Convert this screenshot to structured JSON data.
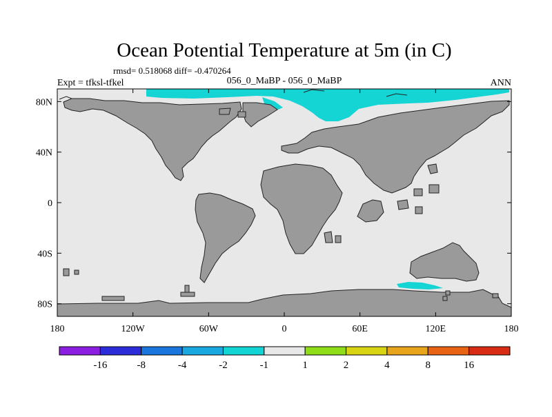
{
  "title": "Ocean Potential Temperature at 5m (in C)",
  "stats": "rmsd= 0.518068 diff= -0.470264",
  "left_label": "Expt = tfksl-tfkel",
  "center_label": "056_0_MaBP - 056_0_MaBP",
  "right_label": "ANN",
  "map": {
    "projection": "cylindrical equidistant",
    "lon_range": [
      -180,
      180
    ],
    "lat_range": [
      -90,
      90
    ],
    "lon_ticks": [
      "180",
      "120W",
      "60W",
      "0",
      "60E",
      "120E",
      "180"
    ],
    "lat_ticks": [
      "80N",
      "40N",
      "0",
      "40S",
      "80S"
    ],
    "land_color": "#9a9a9a",
    "ocean_color": "#e8e8e8",
    "anomaly_color": "#15d4d4"
  },
  "colorbar": {
    "labels": [
      "-16",
      "-8",
      "-4",
      "-2",
      "-1",
      "1",
      "2",
      "4",
      "8",
      "16"
    ],
    "colors": [
      "#8b1ee0",
      "#2c2cd8",
      "#1a76dc",
      "#1aa8e0",
      "#12d4d4",
      "#e8e8e8",
      "#8fdc18",
      "#d8d414",
      "#e8a41a",
      "#e86414",
      "#d82c14"
    ]
  }
}
